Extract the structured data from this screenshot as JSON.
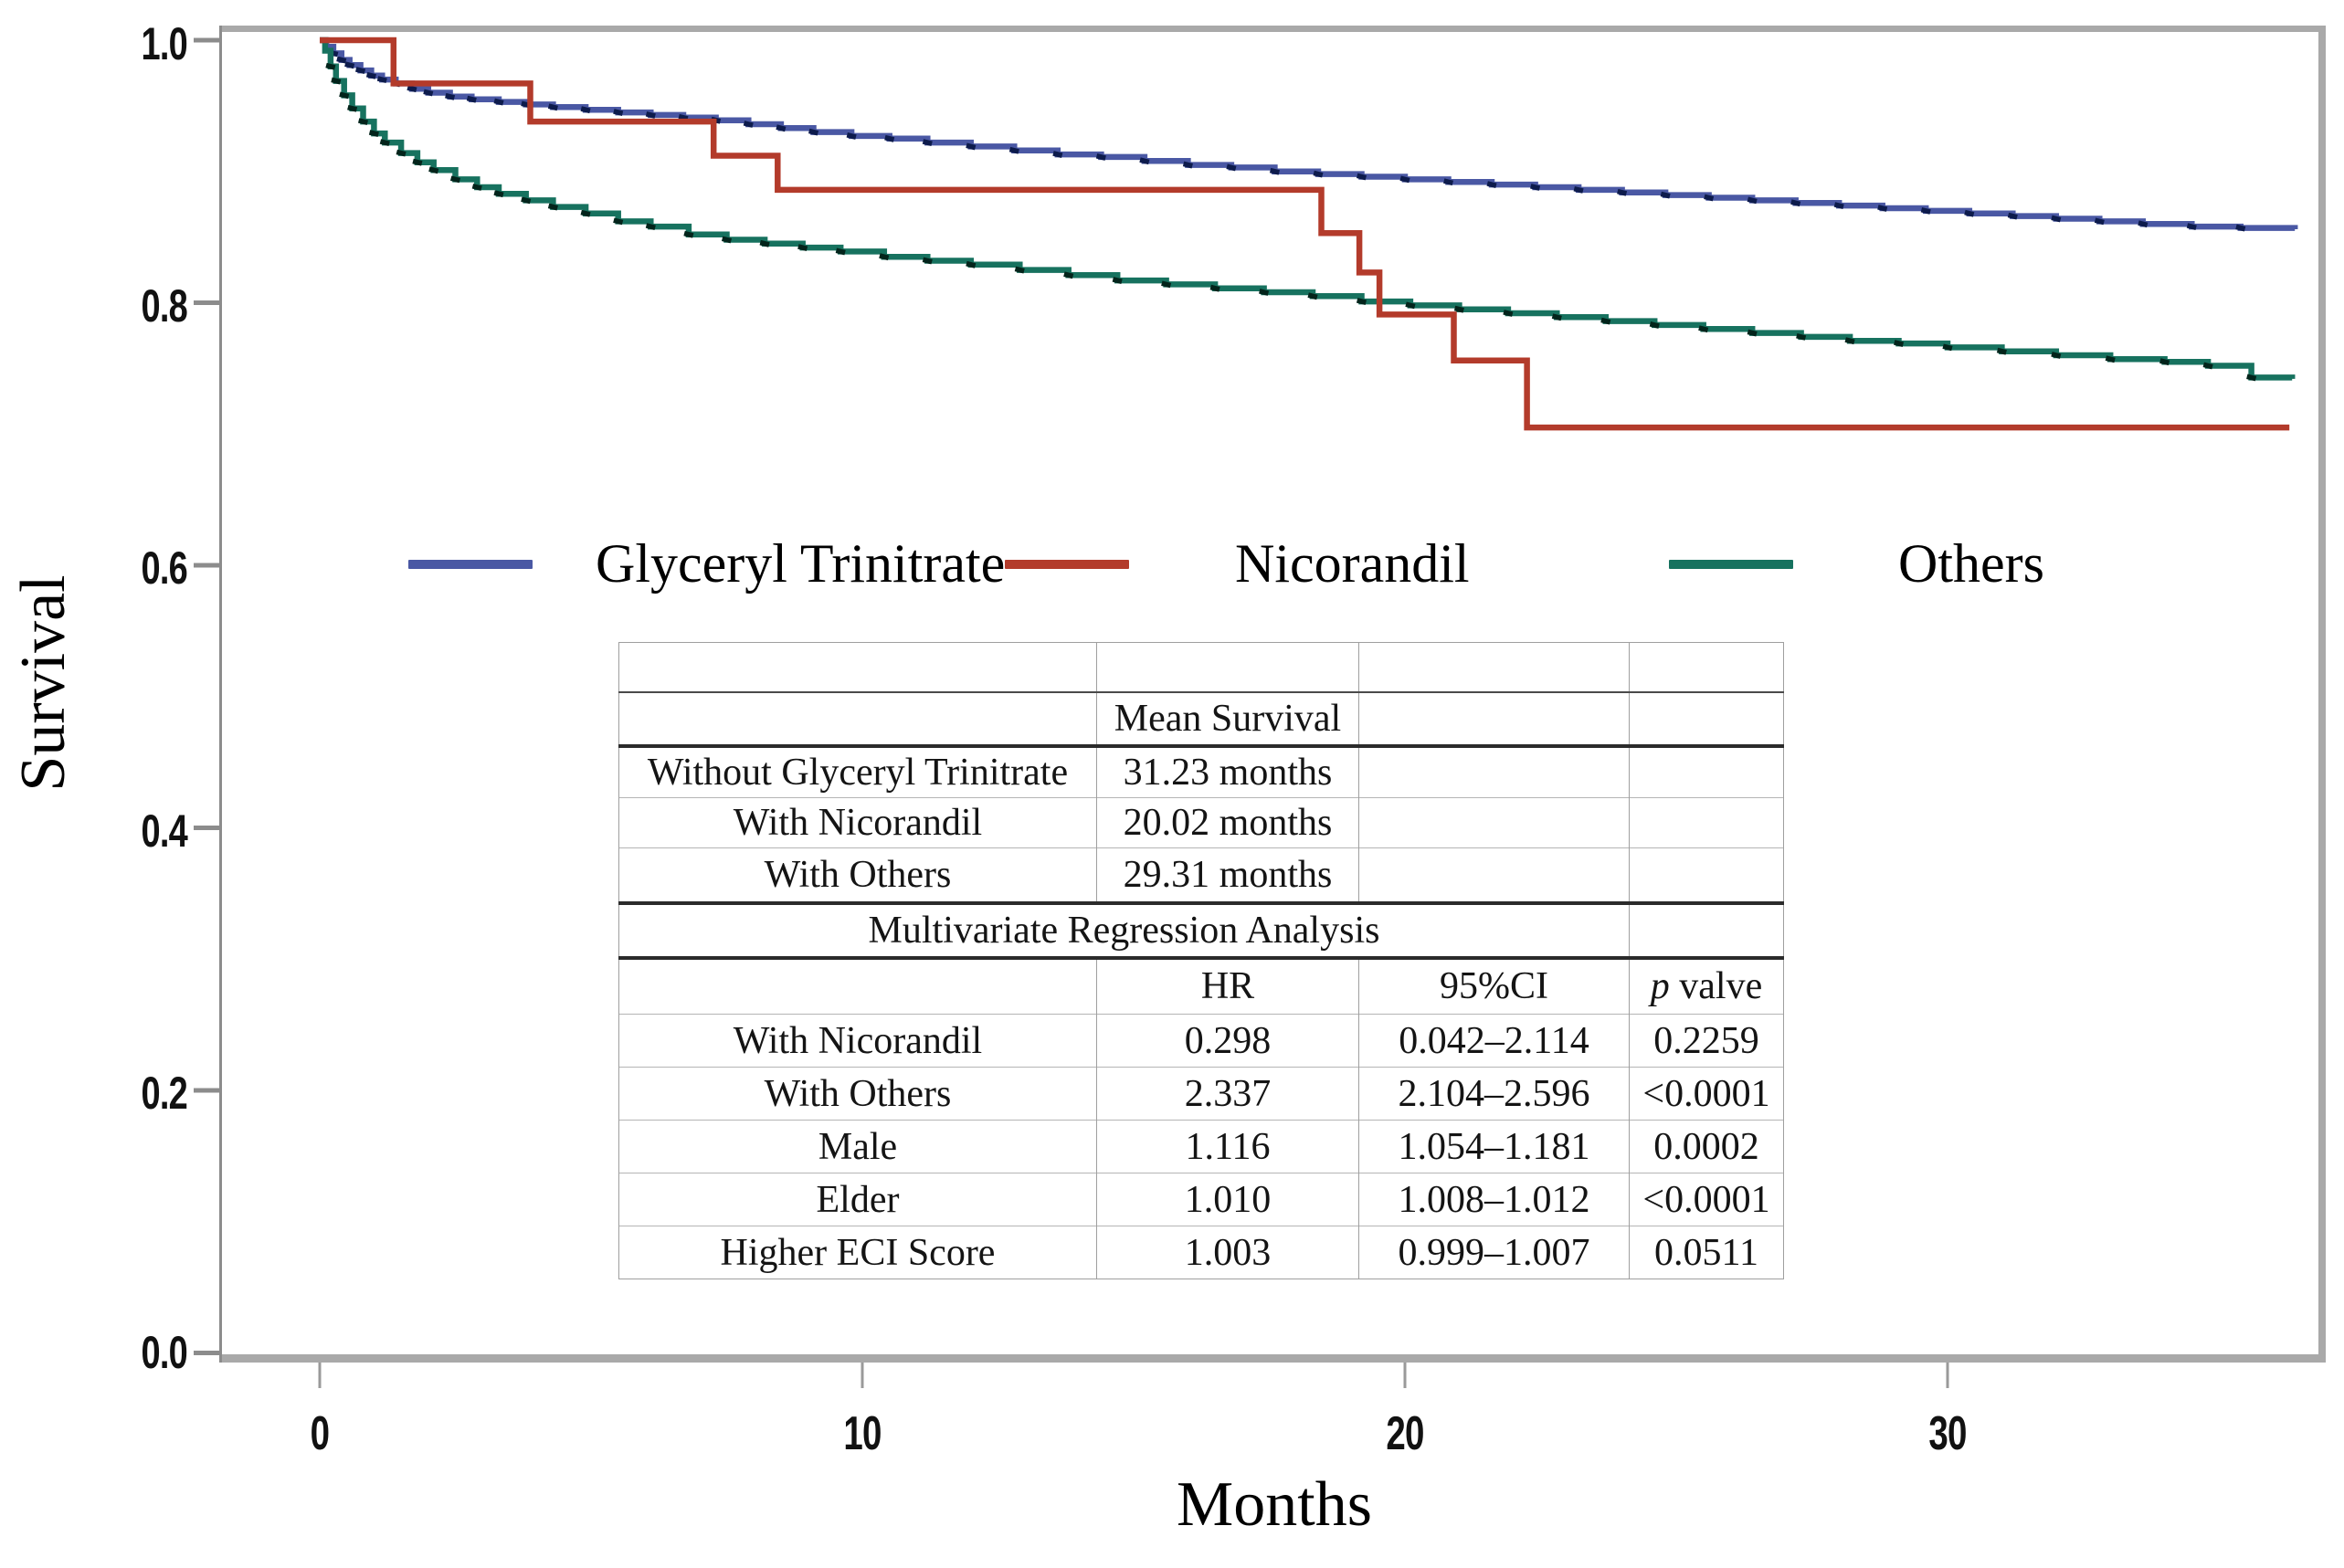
{
  "figure": {
    "kind": "kaplan-meier-survival-plot-with-inset-table"
  },
  "chart_data": {
    "type": "line",
    "subtype": "step-survival-curves",
    "title": "",
    "xlabel": "Months",
    "ylabel": "Survival",
    "x_ticks": [
      "0",
      "10",
      "20",
      "30"
    ],
    "x_tick_values": [
      0,
      10,
      20,
      30
    ],
    "y_ticks": [
      "1.0",
      "0.8",
      "0.6",
      "0.4",
      "0.2",
      "0.0"
    ],
    "y_tick_values": [
      1.0,
      0.8,
      0.6,
      0.4,
      0.2,
      0.0
    ],
    "xlim": [
      0,
      36.9
    ],
    "ylim": [
      0.0,
      1.0
    ],
    "grid": "off",
    "legend_position": "inside-center-left",
    "legend": [
      {
        "label": "Glyceryl Trinitrate",
        "color": "#4a58a4"
      },
      {
        "label": "Nicorandil",
        "color": "#b33b2b"
      },
      {
        "label": "Others",
        "color": "#17725f"
      }
    ],
    "series": [
      {
        "name": "Glyceryl Trinitrate",
        "color": "#4a58a4",
        "mark_color": "#0d1b4c",
        "censor_marks": true,
        "points": [
          [
            0,
            1.0
          ],
          [
            0.12,
            0.995
          ],
          [
            0.25,
            0.99
          ],
          [
            0.4,
            0.985
          ],
          [
            0.55,
            0.981
          ],
          [
            0.75,
            0.977
          ],
          [
            0.95,
            0.973
          ],
          [
            1.15,
            0.97
          ],
          [
            1.4,
            0.967
          ],
          [
            1.7,
            0.963
          ],
          [
            2.0,
            0.96
          ],
          [
            2.4,
            0.957
          ],
          [
            2.8,
            0.955
          ],
          [
            3.3,
            0.953
          ],
          [
            3.8,
            0.951
          ],
          [
            4.3,
            0.949
          ],
          [
            4.9,
            0.947
          ],
          [
            5.5,
            0.945
          ],
          [
            6.1,
            0.943
          ],
          [
            6.7,
            0.941
          ],
          [
            7.3,
            0.939
          ],
          [
            7.9,
            0.936
          ],
          [
            8.5,
            0.933
          ],
          [
            9.1,
            0.93
          ],
          [
            9.8,
            0.927
          ],
          [
            10.5,
            0.925
          ],
          [
            11.2,
            0.922
          ],
          [
            12.0,
            0.919
          ],
          [
            12.8,
            0.916
          ],
          [
            13.6,
            0.913
          ],
          [
            14.4,
            0.911
          ],
          [
            15.2,
            0.908
          ],
          [
            16.0,
            0.905
          ],
          [
            16.8,
            0.903
          ],
          [
            17.6,
            0.9
          ],
          [
            18.4,
            0.898
          ],
          [
            19.2,
            0.896
          ],
          [
            20.0,
            0.894
          ],
          [
            20.8,
            0.892
          ],
          [
            21.6,
            0.89
          ],
          [
            22.4,
            0.888
          ],
          [
            23.2,
            0.886
          ],
          [
            24.0,
            0.884
          ],
          [
            24.8,
            0.882
          ],
          [
            25.6,
            0.88
          ],
          [
            26.4,
            0.878
          ],
          [
            27.2,
            0.876
          ],
          [
            28.0,
            0.874
          ],
          [
            28.8,
            0.872
          ],
          [
            29.6,
            0.87
          ],
          [
            30.4,
            0.868
          ],
          [
            31.2,
            0.866
          ],
          [
            32.0,
            0.864
          ],
          [
            32.8,
            0.862
          ],
          [
            33.6,
            0.86
          ],
          [
            34.5,
            0.858
          ],
          [
            35.4,
            0.857
          ],
          [
            36.4,
            0.856
          ]
        ]
      },
      {
        "name": "Others",
        "color": "#17725f",
        "mark_color": "#03241b",
        "censor_marks": true,
        "points": [
          [
            0,
            1.0
          ],
          [
            0.1,
            0.992
          ],
          [
            0.2,
            0.98
          ],
          [
            0.3,
            0.969
          ],
          [
            0.45,
            0.958
          ],
          [
            0.6,
            0.948
          ],
          [
            0.8,
            0.938
          ],
          [
            1.0,
            0.929
          ],
          [
            1.2,
            0.922
          ],
          [
            1.5,
            0.914
          ],
          [
            1.8,
            0.907
          ],
          [
            2.1,
            0.901
          ],
          [
            2.5,
            0.894
          ],
          [
            2.9,
            0.888
          ],
          [
            3.3,
            0.883
          ],
          [
            3.8,
            0.878
          ],
          [
            4.3,
            0.873
          ],
          [
            4.9,
            0.868
          ],
          [
            5.5,
            0.862
          ],
          [
            6.1,
            0.858
          ],
          [
            6.8,
            0.852
          ],
          [
            7.5,
            0.848
          ],
          [
            8.2,
            0.845
          ],
          [
            8.9,
            0.842
          ],
          [
            9.6,
            0.839
          ],
          [
            10.4,
            0.835
          ],
          [
            11.2,
            0.832
          ],
          [
            12.0,
            0.829
          ],
          [
            12.9,
            0.825
          ],
          [
            13.8,
            0.821
          ],
          [
            14.7,
            0.817
          ],
          [
            15.6,
            0.814
          ],
          [
            16.5,
            0.811
          ],
          [
            17.4,
            0.808
          ],
          [
            18.3,
            0.805
          ],
          [
            19.2,
            0.801
          ],
          [
            20.1,
            0.798
          ],
          [
            21.0,
            0.795
          ],
          [
            21.9,
            0.792
          ],
          [
            22.8,
            0.789
          ],
          [
            23.7,
            0.786
          ],
          [
            24.6,
            0.783
          ],
          [
            25.5,
            0.78
          ],
          [
            26.4,
            0.777
          ],
          [
            27.3,
            0.774
          ],
          [
            28.2,
            0.771
          ],
          [
            29.1,
            0.769
          ],
          [
            30.0,
            0.766
          ],
          [
            31.0,
            0.763
          ],
          [
            32.0,
            0.76
          ],
          [
            33.0,
            0.757
          ],
          [
            34.0,
            0.755
          ],
          [
            34.8,
            0.752
          ],
          [
            35.6,
            0.743
          ],
          [
            36.35,
            0.742
          ]
        ]
      },
      {
        "name": "Nicorandil",
        "color": "#b33b2b",
        "mark_color": "#6e1f14",
        "censor_marks": false,
        "points": [
          [
            0,
            1.0
          ],
          [
            1.36,
            0.967
          ],
          [
            3.88,
            0.938
          ],
          [
            7.26,
            0.912
          ],
          [
            8.44,
            0.886
          ],
          [
            18.46,
            0.853
          ],
          [
            19.16,
            0.823
          ],
          [
            19.53,
            0.791
          ],
          [
            20.9,
            0.756
          ],
          [
            22.25,
            0.705
          ],
          [
            36.3,
            0.705
          ]
        ]
      }
    ],
    "inset_table": {
      "mean_survival": {
        "header": "Mean Survival",
        "rows": [
          {
            "label": "Without Glyceryl Trinitrate",
            "value": "31.23 months"
          },
          {
            "label": "With Nicorandil",
            "value": "20.02 months"
          },
          {
            "label": "With Others",
            "value": "29.31 months"
          }
        ]
      },
      "regression": {
        "title": "Multivariate Regression Analysis",
        "columns": {
          "hr": "HR",
          "ci": "95%CI",
          "p_italic": "p",
          "p_rest": "valve"
        },
        "rows": [
          {
            "label": "With Nicorandil",
            "hr": "0.298",
            "ci": "0.042–2.114",
            "p": "0.2259"
          },
          {
            "label": "With Others",
            "hr": "2.337",
            "ci": "2.104–2.596",
            "p": "<0.0001"
          },
          {
            "label": "Male",
            "hr": "1.116",
            "ci": "1.054–1.181",
            "p": "0.0002"
          },
          {
            "label": "Elder",
            "hr": "1.010",
            "ci": "1.008–1.012",
            "p": "<0.0001"
          },
          {
            "label": "Higher ECI Score",
            "hr": "1.003",
            "ci": "0.999–1.007",
            "p": "0.0511"
          }
        ]
      }
    }
  }
}
